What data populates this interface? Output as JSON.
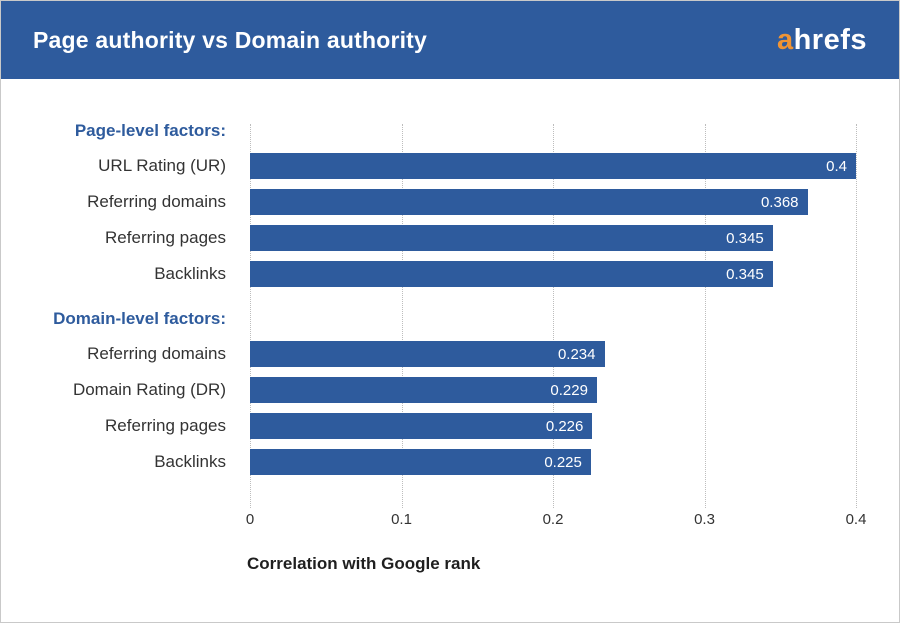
{
  "header": {
    "title": "Page authority vs Domain authority",
    "logo": {
      "prefix": "a",
      "rest": "hrefs"
    }
  },
  "colors": {
    "brand_blue": "#2e5b9d",
    "logo_orange": "#ef9434",
    "bar_blue": "#2e5b9d",
    "gridline": "#bdbdbd"
  },
  "chart_data": {
    "type": "bar",
    "orientation": "horizontal",
    "title": "Page authority vs Domain authority",
    "xlabel": "Correlation with Google rank",
    "ylabel": "",
    "xlim": [
      0,
      0.4
    ],
    "xticks": [
      0,
      0.1,
      0.2,
      0.3,
      0.4
    ],
    "xtick_labels": [
      "0",
      "0.1",
      "0.2",
      "0.3",
      "0.4"
    ],
    "grid": "vertical-dotted",
    "legend": "none",
    "groups": [
      {
        "heading": "Page-level factors:",
        "items": [
          {
            "label": "URL Rating (UR)",
            "value": 0.4,
            "value_label": "0.4"
          },
          {
            "label": "Referring domains",
            "value": 0.368,
            "value_label": "0.368"
          },
          {
            "label": "Referring pages",
            "value": 0.345,
            "value_label": "0.345"
          },
          {
            "label": "Backlinks",
            "value": 0.345,
            "value_label": "0.345"
          }
        ]
      },
      {
        "heading": "Domain-level factors:",
        "items": [
          {
            "label": "Referring domains",
            "value": 0.234,
            "value_label": "0.234"
          },
          {
            "label": "Domain Rating (DR)",
            "value": 0.229,
            "value_label": "0.229"
          },
          {
            "label": "Referring pages",
            "value": 0.226,
            "value_label": "0.226"
          },
          {
            "label": "Backlinks",
            "value": 0.225,
            "value_label": "0.225"
          }
        ]
      }
    ]
  }
}
